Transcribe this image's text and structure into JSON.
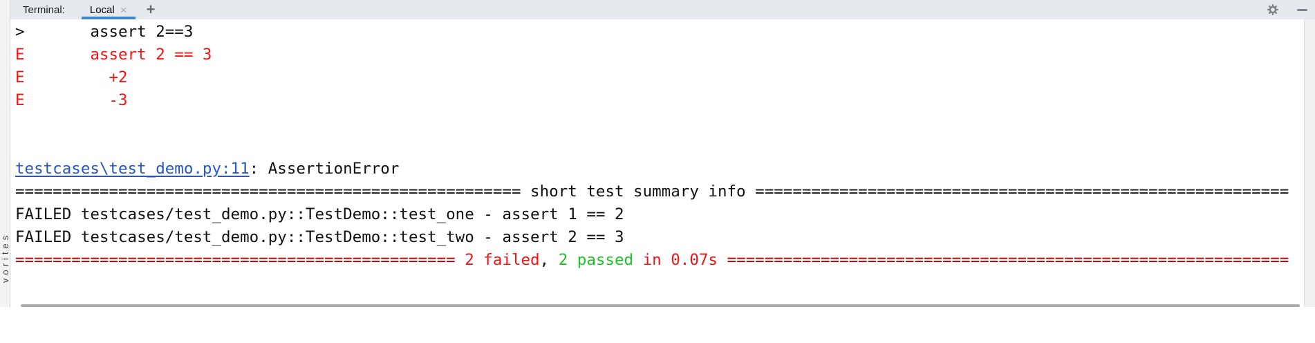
{
  "header": {
    "label": "Terminal:",
    "tab_label": "Local",
    "close_glyph": "×",
    "new_tab_glyph": "+"
  },
  "sidebar": {
    "tool_label": "vorites"
  },
  "colors": {
    "error_red": "#f21313",
    "separator_red": "#c00000",
    "pass_green": "#1dc428",
    "link_blue": "#2656c9",
    "tab_underline": "#4284c9",
    "default_fg": "#111111"
  },
  "terminal": {
    "lines": [
      [
        {
          "t": ">       assert 2==3",
          "s": "fg"
        }
      ],
      [
        {
          "t": "E       assert 2 == 3",
          "s": "red"
        }
      ],
      [
        {
          "t": "E         +2",
          "s": "red"
        }
      ],
      [
        {
          "t": "E         -3",
          "s": "red"
        }
      ],
      [],
      [],
      [
        {
          "t": "testcases\\test_demo.py:11",
          "s": "link"
        },
        {
          "t": ": AssertionError",
          "s": "fg"
        }
      ],
      [
        {
          "t": "====================================================== short test summary info =========================================================",
          "s": "fg"
        }
      ],
      [
        {
          "t": "FAILED testcases/test_demo.py::TestDemo::test_one - assert 1 == 2",
          "s": "fg"
        }
      ],
      [
        {
          "t": "FAILED testcases/test_demo.py::TestDemo::test_two - assert 2 == 3",
          "s": "fg"
        }
      ],
      [
        {
          "t": "=============================================== ",
          "s": "darkred"
        },
        {
          "t": "2 failed",
          "s": "red"
        },
        {
          "t": ", ",
          "s": "fg"
        },
        {
          "t": "2 passed",
          "s": "green"
        },
        {
          "t": " in 0.07s",
          "s": "red"
        },
        {
          "t": " ============================================================",
          "s": "darkred"
        }
      ]
    ]
  }
}
